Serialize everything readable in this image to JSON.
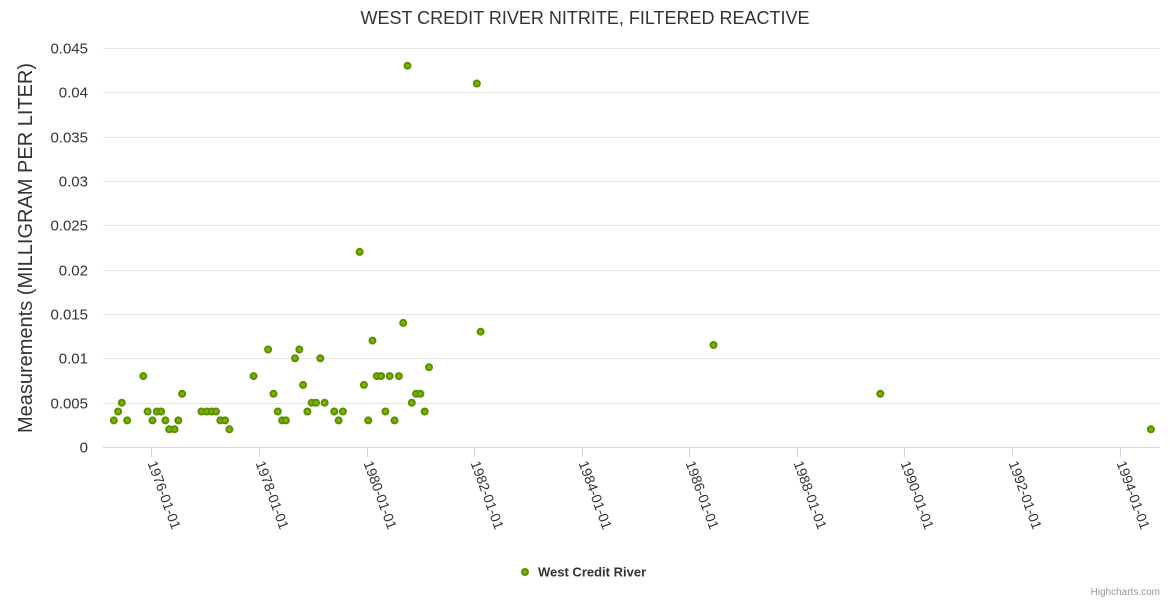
{
  "chart_data": {
    "type": "scatter",
    "title": "WEST CREDIT RIVER NITRITE, FILTERED REACTIVE",
    "ylabel": "Measurements (MILLIGRAM PER LITER)",
    "xlabel": "",
    "ylim": [
      0,
      0.045
    ],
    "y_ticks": [
      {
        "value": 0,
        "label": "0"
      },
      {
        "value": 0.005,
        "label": "0.005"
      },
      {
        "value": 0.01,
        "label": "0.01"
      },
      {
        "value": 0.015,
        "label": "0.015"
      },
      {
        "value": 0.02,
        "label": "0.02"
      },
      {
        "value": 0.025,
        "label": "0.025"
      },
      {
        "value": 0.03,
        "label": "0.03"
      },
      {
        "value": 0.035,
        "label": "0.035"
      },
      {
        "value": 0.04,
        "label": "0.04"
      },
      {
        "value": 0.045,
        "label": "0.045"
      }
    ],
    "xlim": [
      1975.1,
      1994.75
    ],
    "x_ticks": [
      {
        "value": 1976,
        "label": "1976-01-01"
      },
      {
        "value": 1978,
        "label": "1978-01-01"
      },
      {
        "value": 1980,
        "label": "1980-01-01"
      },
      {
        "value": 1982,
        "label": "1982-01-01"
      },
      {
        "value": 1984,
        "label": "1984-01-01"
      },
      {
        "value": 1986,
        "label": "1986-01-01"
      },
      {
        "value": 1988,
        "label": "1988-01-01"
      },
      {
        "value": 1990,
        "label": "1990-01-01"
      },
      {
        "value": 1992,
        "label": "1992-01-01"
      },
      {
        "value": 1994,
        "label": "1994-01-01"
      }
    ],
    "series": [
      {
        "name": "West Credit River",
        "color": "#7cb500",
        "points": [
          {
            "x": 1975.3,
            "y": 0.003
          },
          {
            "x": 1975.38,
            "y": 0.004
          },
          {
            "x": 1975.45,
            "y": 0.005
          },
          {
            "x": 1975.55,
            "y": 0.003
          },
          {
            "x": 1975.85,
            "y": 0.008
          },
          {
            "x": 1975.93,
            "y": 0.004
          },
          {
            "x": 1976.02,
            "y": 0.003
          },
          {
            "x": 1976.1,
            "y": 0.004
          },
          {
            "x": 1976.18,
            "y": 0.004
          },
          {
            "x": 1976.26,
            "y": 0.003
          },
          {
            "x": 1976.33,
            "y": 0.002
          },
          {
            "x": 1976.43,
            "y": 0.002
          },
          {
            "x": 1976.5,
            "y": 0.003
          },
          {
            "x": 1976.57,
            "y": 0.006
          },
          {
            "x": 1976.93,
            "y": 0.004
          },
          {
            "x": 1977.03,
            "y": 0.004
          },
          {
            "x": 1977.12,
            "y": 0.004
          },
          {
            "x": 1977.2,
            "y": 0.004
          },
          {
            "x": 1977.28,
            "y": 0.003
          },
          {
            "x": 1977.37,
            "y": 0.003
          },
          {
            "x": 1977.45,
            "y": 0.002
          },
          {
            "x": 1977.9,
            "y": 0.008
          },
          {
            "x": 1978.17,
            "y": 0.011
          },
          {
            "x": 1978.27,
            "y": 0.006
          },
          {
            "x": 1978.35,
            "y": 0.004
          },
          {
            "x": 1978.43,
            "y": 0.003
          },
          {
            "x": 1978.5,
            "y": 0.003
          },
          {
            "x": 1978.67,
            "y": 0.01
          },
          {
            "x": 1978.75,
            "y": 0.011
          },
          {
            "x": 1978.82,
            "y": 0.007
          },
          {
            "x": 1978.9,
            "y": 0.004
          },
          {
            "x": 1978.98,
            "y": 0.005
          },
          {
            "x": 1979.06,
            "y": 0.005
          },
          {
            "x": 1979.14,
            "y": 0.01
          },
          {
            "x": 1979.22,
            "y": 0.005
          },
          {
            "x": 1979.4,
            "y": 0.004
          },
          {
            "x": 1979.48,
            "y": 0.003
          },
          {
            "x": 1979.56,
            "y": 0.004
          },
          {
            "x": 1979.87,
            "y": 0.022
          },
          {
            "x": 1979.95,
            "y": 0.007
          },
          {
            "x": 1980.03,
            "y": 0.003
          },
          {
            "x": 1980.11,
            "y": 0.012
          },
          {
            "x": 1980.19,
            "y": 0.008
          },
          {
            "x": 1980.27,
            "y": 0.008
          },
          {
            "x": 1980.35,
            "y": 0.004
          },
          {
            "x": 1980.43,
            "y": 0.008
          },
          {
            "x": 1980.52,
            "y": 0.003
          },
          {
            "x": 1980.6,
            "y": 0.008
          },
          {
            "x": 1980.68,
            "y": 0.014
          },
          {
            "x": 1980.76,
            "y": 0.043
          },
          {
            "x": 1980.84,
            "y": 0.005
          },
          {
            "x": 1980.92,
            "y": 0.006
          },
          {
            "x": 1981.0,
            "y": 0.006
          },
          {
            "x": 1981.08,
            "y": 0.004
          },
          {
            "x": 1981.16,
            "y": 0.009
          },
          {
            "x": 1982.05,
            "y": 0.041
          },
          {
            "x": 1982.12,
            "y": 0.013
          },
          {
            "x": 1986.45,
            "y": 0.0115
          },
          {
            "x": 1989.55,
            "y": 0.006
          },
          {
            "x": 1994.58,
            "y": 0.002
          }
        ]
      }
    ],
    "legend": "bottom-center"
  },
  "credits": "Highcharts.com"
}
